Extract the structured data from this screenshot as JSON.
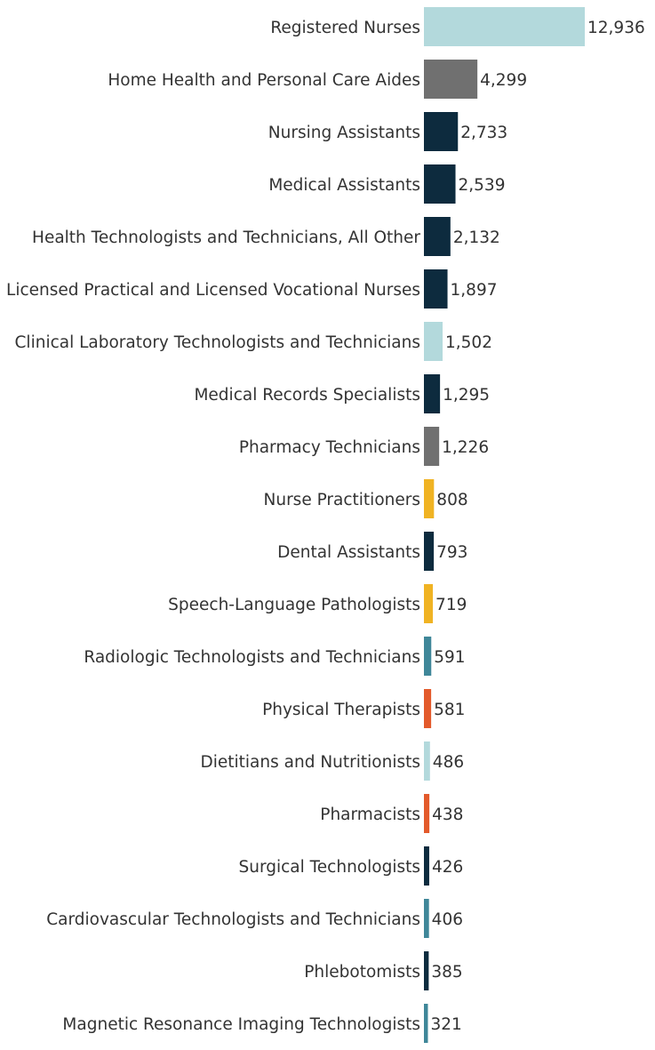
{
  "chart_data": {
    "type": "bar",
    "orientation": "horizontal",
    "title": "",
    "xlabel": "",
    "ylabel": "",
    "grid": false,
    "legend": "none",
    "categories": [
      "Registered Nurses",
      "Home Health and Personal Care Aides",
      "Nursing Assistants",
      "Medical Assistants",
      "Health Technologists and Technicians, All Other",
      "Licensed Practical and Licensed Vocational Nurses",
      "Clinical Laboratory Technologists and Technicians",
      "Medical Records Specialists",
      "Pharmacy Technicians",
      "Nurse Practitioners",
      "Dental Assistants",
      "Speech-Language Pathologists",
      "Radiologic Technologists and Technicians",
      "Physical Therapists",
      "Dietitians and Nutritionists",
      "Pharmacists",
      "Surgical Technologists",
      "Cardiovascular Technologists and Technicians",
      "Phlebotomists",
      "Magnetic Resonance Imaging Technologists"
    ],
    "values": [
      12936,
      4299,
      2733,
      2539,
      2132,
      1897,
      1502,
      1295,
      1226,
      808,
      793,
      719,
      591,
      581,
      486,
      438,
      426,
      406,
      385,
      321
    ],
    "value_labels": [
      "12,936",
      "4,299",
      "2,733",
      "2,539",
      "2,132",
      "1,897",
      "1,502",
      "1,295",
      "1,226",
      "808",
      "793",
      "719",
      "591",
      "581",
      "486",
      "438",
      "426",
      "406",
      "385",
      "321"
    ],
    "bar_colors": [
      "#b3d9dc",
      "#707070",
      "#0d2b3e",
      "#0d2b3e",
      "#0d2b3e",
      "#0d2b3e",
      "#b3d9dc",
      "#0d2b3e",
      "#707070",
      "#f0b323",
      "#0d2b3e",
      "#f0b323",
      "#3f8799",
      "#e35a2b",
      "#b3d9dc",
      "#e35a2b",
      "#0d2b3e",
      "#3f8799",
      "#0d2b3e",
      "#3f8799"
    ],
    "xlim": [
      0,
      12936
    ]
  }
}
